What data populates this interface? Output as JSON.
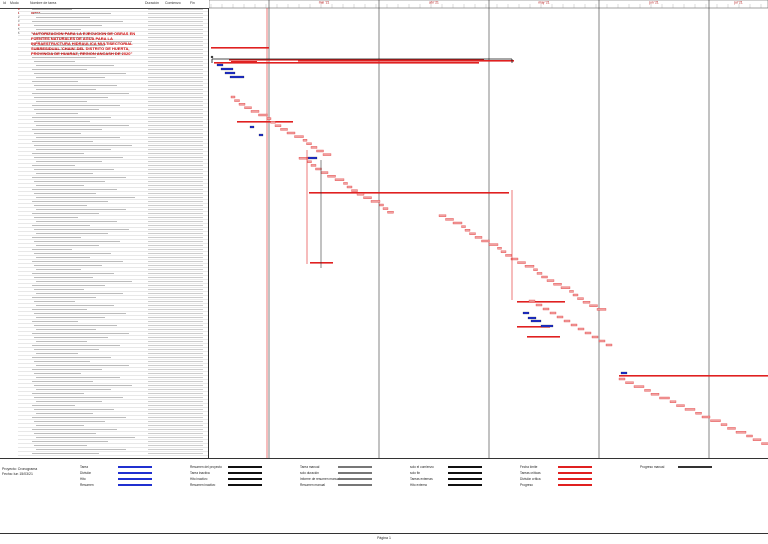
{
  "header": {
    "col_id": "Id",
    "col_mode": "Modo",
    "col_name": "Nombre de tarea",
    "col_duration": "Duración",
    "col_start": "Comienzo",
    "col_finish": "Fin"
  },
  "title": "\"AUTORIZACION PARA LA EJECUCION DE OBRAS EN FUENTES NATURALES DE AGUA PARA LA INFRAESTRUCTURA HIDRAULICA MULTISECTORIAL SUBRESIDUAL 'CHAIN' DEL DISTRITO DE HUERTA, PROVINCIA DE HUARAZ, REGION ANCASH DE 2020\"",
  "timescale": [
    {
      "label": "mar '21"
    },
    {
      "label": "abr '21"
    },
    {
      "label": "may '21"
    },
    {
      "label": "jun '21"
    },
    {
      "label": "jul '21"
    }
  ],
  "rows": [
    {
      "id": "0",
      "name": "",
      "dur": "",
      "start": "",
      "fin": "",
      "sum": true
    },
    {
      "id": "1",
      "name": "OBRAS",
      "dur": "",
      "start": "",
      "fin": "",
      "sum": true
    },
    {
      "id": "2",
      "name": "",
      "dur": "",
      "start": "",
      "fin": "",
      "sum": false
    },
    {
      "id": "3",
      "name": "",
      "dur": "",
      "start": "",
      "fin": "",
      "sum": false
    },
    {
      "id": "4",
      "name": "",
      "dur": "",
      "start": "",
      "fin": "",
      "sum": true
    },
    {
      "id": "5",
      "name": "",
      "dur": "",
      "start": "",
      "fin": "",
      "sum": false
    },
    {
      "id": "6",
      "name": "",
      "dur": "",
      "start": "",
      "fin": "",
      "sum": false
    }
  ],
  "legend": {
    "project_label": "Proyecto: Cronograma",
    "date_label": "Fecha: lun 15/03/21",
    "items_col1": [
      "Tarea",
      "División",
      "Hito",
      "Resumen"
    ],
    "items_col2": [
      "Resumen del proyecto",
      "Tarea inactiva",
      "Hito inactivo",
      "Resumen inactivo"
    ],
    "items_col3": [
      "Tarea manual",
      "solo duración",
      "Informe de resumen manual",
      "Resumen manual"
    ],
    "items_col4": [
      "solo el comienzo",
      "solo fin",
      "Tareas externas",
      "Hito externo"
    ],
    "items_col5": [
      "Fecha límite",
      "Tareas críticas",
      "División crítica",
      "Progreso"
    ],
    "items_col6": [
      "Progreso manual"
    ]
  },
  "footer": {
    "page": "Página 1"
  },
  "colors": {
    "critical": "#e02020",
    "critical_light": "#f0a0a0",
    "task": "#2030d0",
    "summary": "#000000",
    "today": "#e02020"
  }
}
